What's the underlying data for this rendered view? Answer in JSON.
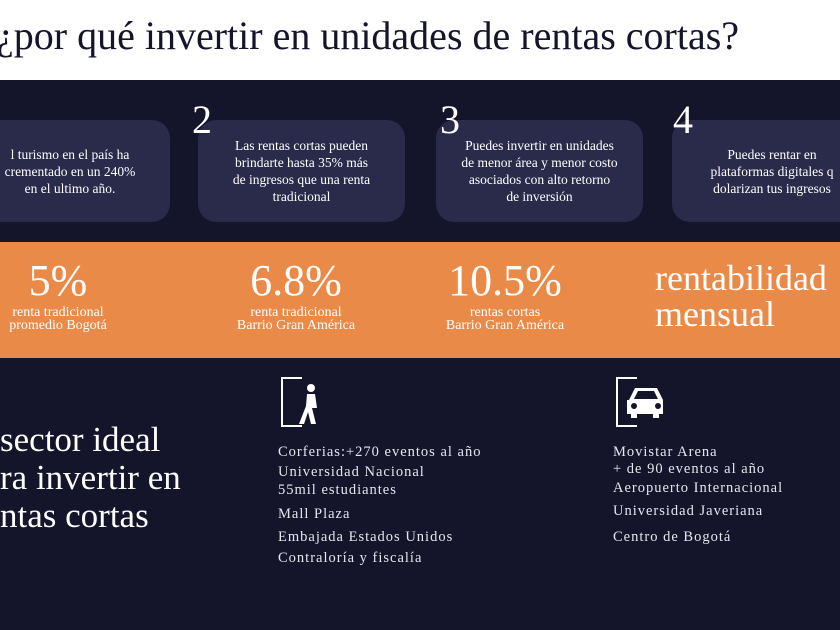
{
  "header": {
    "title": "¿por qué invertir en unidades de rentas cortas?"
  },
  "cards": [
    {
      "lines": [
        "l turismo en el país ha",
        "crementado en un 240%",
        "en el ultimo año."
      ]
    },
    {
      "number": "2",
      "lines": [
        "Las rentas cortas pueden",
        "brindarte hasta 35% más",
        "de ingresos que una renta",
        "tradicional"
      ]
    },
    {
      "number": "3",
      "lines": [
        "Puedes invertir en unidades",
        "de menor área y menor costo",
        "asociados con alto retorno",
        "de inversión"
      ]
    },
    {
      "number": "4",
      "lines": [
        "Puedes rentar en",
        "plataformas digitales q",
        "dolarizan tus ingresos"
      ]
    }
  ],
  "stats": [
    {
      "value": "5%",
      "lines": [
        "renta tradicional",
        "promedio Bogotá"
      ]
    },
    {
      "value": "6.8%",
      "lines": [
        "renta tradicional",
        "Barrio Gran América"
      ]
    },
    {
      "value": "10.5%",
      "lines": [
        "rentas cortas",
        "Barrio Gran América"
      ]
    }
  ],
  "stats_caption": [
    "rentabilidad",
    "mensual"
  ],
  "sector": [
    "sector ideal",
    "ra invertir en",
    "ntas cortas"
  ],
  "places_left": [
    "Corferias:+270 eventos al año",
    "Universidad Nacional",
    "55mil estudiantes",
    "Mall Plaza",
    "Embajada Estados Unidos",
    "Contraloría y fiscalía"
  ],
  "places_right": [
    "Movistar Arena",
    "+ de 90 eventos al año",
    "Aeropuerto Internacional",
    "Universidad Javeriana",
    "Centro de Bogotá"
  ]
}
